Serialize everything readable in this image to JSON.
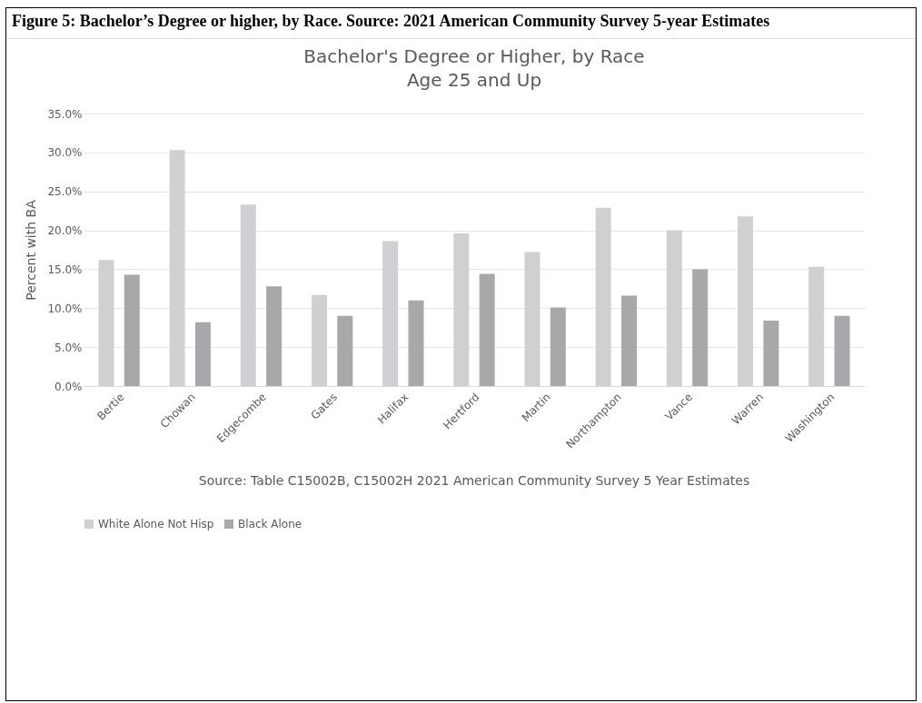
{
  "chart_data": {
    "type": "bar",
    "title": "Bachelor's Degree or Higher, by Race",
    "subtitle": "Age 25 and Up",
    "ylabel": "Percent with BA",
    "annotations": [
      "Figure 5: Bachelor’s Degree or higher, by Race.  Source: 2021 American Community Survey 5-year Estimates",
      "Source: Table C15002B, C15002H 2021 American Community Survey 5 Year Estimates"
    ],
    "categories": [
      "Bertie",
      "Chowan",
      "Edgecombe",
      "Gates",
      "Halifax",
      "Hertford",
      "Martin",
      "Northampton",
      "Vance",
      "Warren",
      "Washington"
    ],
    "series": [
      {
        "name": "White Alone Not Hisp",
        "color": "#d0cfd2",
        "values": [
          16.2,
          30.3,
          23.3,
          11.7,
          18.6,
          19.6,
          17.2,
          22.9,
          20.0,
          21.8,
          15.3
        ]
      },
      {
        "name": "Black Alone",
        "color": "#a8a7aa",
        "values": [
          14.3,
          8.2,
          12.8,
          9.0,
          11.0,
          14.4,
          10.1,
          11.6,
          15.0,
          8.4,
          9.0
        ]
      }
    ],
    "ylim": [
      0,
      35
    ],
    "yticks": [
      {
        "value": 0,
        "label": "0.0%"
      },
      {
        "value": 5,
        "label": "5.0%"
      },
      {
        "value": 10,
        "label": "10.0%"
      },
      {
        "value": 15,
        "label": "15.0%"
      },
      {
        "value": 20,
        "label": "20.0%"
      },
      {
        "value": 25,
        "label": "25.0%"
      },
      {
        "value": 30,
        "label": "30.0%"
      },
      {
        "value": 35,
        "label": "35.0%"
      }
    ],
    "grid": "y",
    "legend": "bottom"
  }
}
